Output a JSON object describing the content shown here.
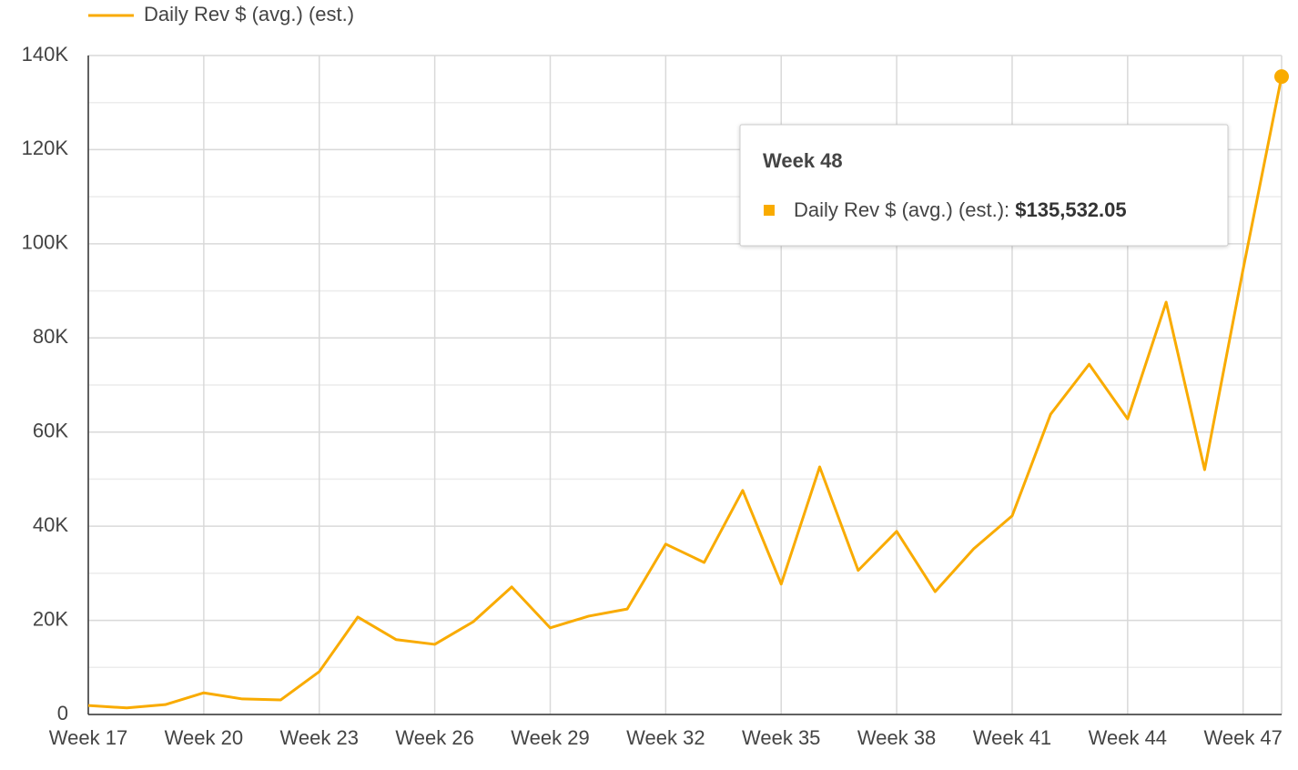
{
  "chart_data": {
    "type": "line",
    "categories": [
      "Week 17",
      null,
      null,
      "Week 20",
      null,
      null,
      "Week 23",
      null,
      null,
      "Week 26",
      null,
      null,
      "Week 29",
      null,
      null,
      "Week 32",
      null,
      null,
      "Week 35",
      null,
      null,
      "Week 38",
      null,
      null,
      "Week 41",
      null,
      null,
      "Week 44",
      null,
      null,
      "Week 47",
      null
    ],
    "series": [
      {
        "name": "Daily Rev $ (avg.) (est.)",
        "color": "#f9ab00",
        "values": [
          1900,
          1400,
          2100,
          4600,
          3300,
          3100,
          9100,
          20700,
          15900,
          14900,
          19700,
          27100,
          18400,
          20900,
          22400,
          36200,
          32300,
          47600,
          27700,
          52600,
          30600,
          38900,
          26100,
          35200,
          42200,
          63800,
          74400,
          62800,
          87600,
          52000,
          94600,
          135532.05
        ],
        "value_labels": [
          null,
          null,
          null,
          null,
          null,
          null,
          null,
          null,
          null,
          null,
          null,
          null,
          null,
          null,
          null,
          null,
          null,
          null,
          null,
          null,
          null,
          null,
          null,
          null,
          null,
          null,
          null,
          null,
          null,
          null,
          null,
          "$135,532.05"
        ]
      }
    ],
    "ylim": [
      0,
      140000
    ],
    "yticks": [
      0,
      {
        "value": 20000,
        "label": "20K"
      },
      {
        "value": 40000,
        "label": "40K"
      },
      {
        "value": 60000,
        "label": "60K"
      },
      {
        "value": 80000,
        "label": "80K"
      },
      {
        "value": 100000,
        "label": "100K"
      },
      {
        "value": 120000,
        "label": "120K"
      },
      {
        "value": 140000,
        "label": "140K"
      }
    ],
    "minor_yticks": [
      10000,
      30000,
      50000,
      70000,
      90000,
      110000,
      130000
    ],
    "grid": true,
    "legend": "top-left",
    "tooltip": {
      "title": "Week 48",
      "label": "Daily Rev $ (avg.) (est.): "
    }
  }
}
